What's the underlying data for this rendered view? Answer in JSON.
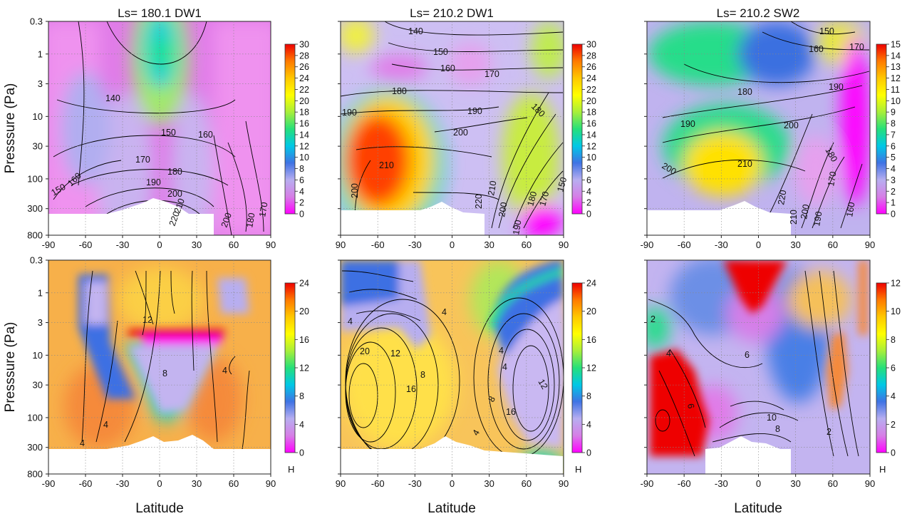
{
  "chart_data": [
    {
      "type": "heatmap",
      "title": "Ls= 180.1   DW1",
      "ylabel": "Presssure  (Pa)",
      "xlabel": "",
      "x_ticks": [
        "-90",
        "-60",
        "-30",
        "0",
        "30",
        "60",
        "90"
      ],
      "y_ticks": [
        "0.3",
        "1",
        "3",
        "10",
        "30",
        "100",
        "300",
        "800"
      ],
      "colorbar": {
        "range": [
          0,
          30
        ],
        "ticks": [
          "0",
          "2",
          "4",
          "6",
          "8",
          "10",
          "12",
          "14",
          "16",
          "18",
          "20",
          "22",
          "24",
          "26",
          "28",
          "30"
        ],
        "unit": ""
      },
      "contour_labels": [
        "140",
        "150",
        "160",
        "170",
        "180",
        "190",
        "200",
        "210",
        "220",
        "200",
        "180",
        "170",
        "160",
        "150"
      ]
    },
    {
      "type": "heatmap",
      "title": "Ls= 210.2   DW1",
      "ylabel": "",
      "xlabel": "",
      "x_ticks": [
        "90",
        "-60",
        "-30",
        "0",
        "30",
        "60",
        "90"
      ],
      "y_ticks": [],
      "colorbar": {
        "range": [
          0,
          30
        ],
        "ticks": [
          "0",
          "2",
          "4",
          "6",
          "8",
          "10",
          "12",
          "14",
          "16",
          "18",
          "20",
          "22",
          "24",
          "26",
          "28",
          "30"
        ],
        "unit": ""
      },
      "contour_labels": [
        "140",
        "150",
        "160",
        "170",
        "180",
        "190",
        "190",
        "200",
        "210",
        "200",
        "220",
        "210",
        "200",
        "190",
        "180",
        "170",
        "150",
        "180"
      ]
    },
    {
      "type": "heatmap",
      "title": "Ls= 210.2   SW2",
      "ylabel": "",
      "xlabel": "",
      "x_ticks": [
        "-90",
        "-60",
        "-30",
        "0",
        "30",
        "60",
        "90"
      ],
      "y_ticks": [],
      "colorbar": {
        "range": [
          0,
          15
        ],
        "ticks": [
          "0",
          "1",
          "2",
          "3",
          "4",
          "5",
          "6",
          "7",
          "8",
          "9",
          "10",
          "11",
          "12",
          "13",
          "14",
          "15"
        ],
        "unit": ""
      },
      "contour_labels": [
        "150",
        "160",
        "170",
        "180",
        "190",
        "190",
        "200",
        "200",
        "210",
        "220",
        "210",
        "200",
        "190",
        "180",
        "170",
        "160"
      ]
    },
    {
      "type": "heatmap",
      "title": "",
      "ylabel": "Presssure  (Pa)",
      "xlabel": "Latitude",
      "x_ticks": [
        "-90",
        "-60",
        "-30",
        "0",
        "30",
        "60",
        "90"
      ],
      "y_ticks": [
        "0.3",
        "1",
        "3",
        "10",
        "30",
        "100",
        "300",
        "800"
      ],
      "colorbar": {
        "range": [
          0,
          24
        ],
        "ticks": [
          "0",
          "4",
          "8",
          "12",
          "16",
          "20",
          "24"
        ],
        "unit": "H"
      },
      "contour_labels": [
        "12",
        "8",
        "4",
        "4",
        "4"
      ]
    },
    {
      "type": "heatmap",
      "title": "",
      "ylabel": "",
      "xlabel": "Latitude",
      "x_ticks": [
        "90",
        "-60",
        "-30",
        "0",
        "30",
        "60",
        "90"
      ],
      "y_ticks": [],
      "colorbar": {
        "range": [
          0,
          24
        ],
        "ticks": [
          "0",
          "4",
          "8",
          "12",
          "16",
          "20",
          "24"
        ],
        "unit": "H"
      },
      "contour_labels": [
        "4",
        "4",
        "20",
        "12",
        "16",
        "8",
        "4",
        "4",
        "8",
        "12",
        "16",
        "4"
      ]
    },
    {
      "type": "heatmap",
      "title": "",
      "ylabel": "",
      "xlabel": "Latitude",
      "x_ticks": [
        "-90",
        "-60",
        "-30",
        "0",
        "30",
        "60",
        "90"
      ],
      "y_ticks": [],
      "colorbar": {
        "range": [
          0,
          12
        ],
        "ticks": [
          "0",
          "2",
          "4",
          "6",
          "8",
          "10",
          "12"
        ],
        "unit": "H"
      },
      "contour_labels": [
        "2",
        "4",
        "6",
        "6",
        "10",
        "8",
        "2"
      ]
    }
  ]
}
